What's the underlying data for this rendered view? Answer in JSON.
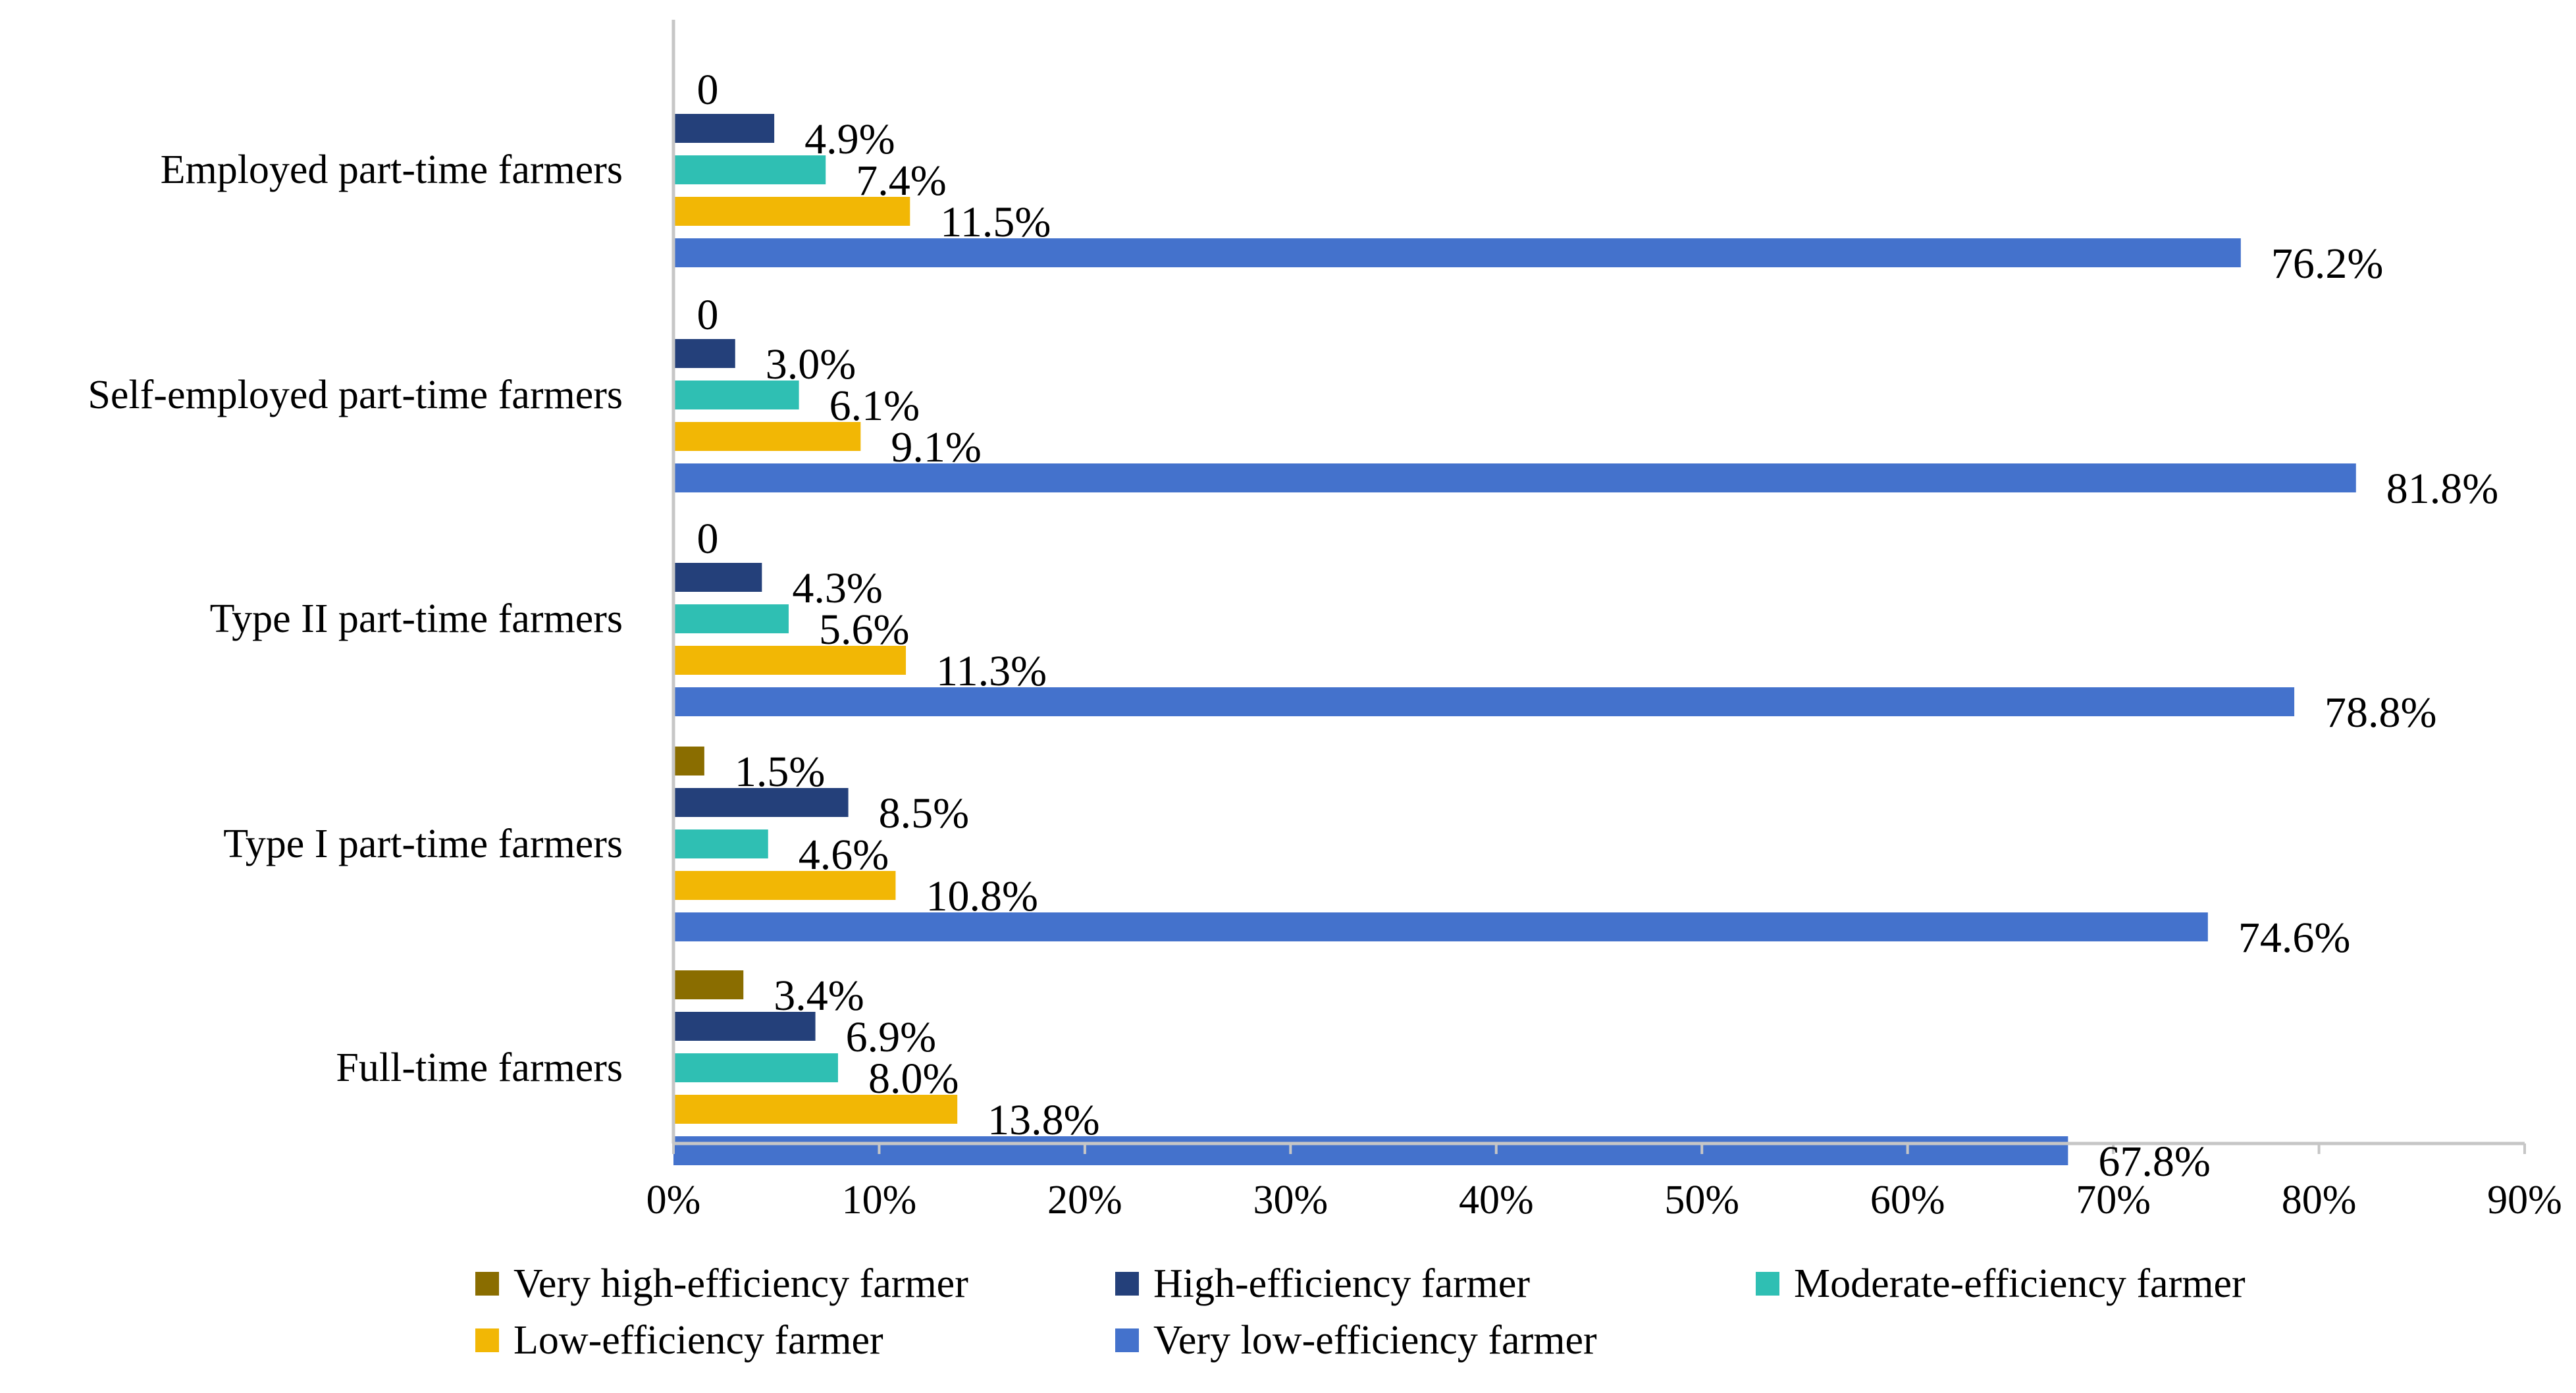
{
  "chart_data": {
    "type": "bar",
    "orientation": "horizontal",
    "categories": [
      "Employed part-time farmers",
      "Self-employed part-time farmers",
      "Type II part-time farmers",
      "Type I part-time farmers",
      "Full-time farmers"
    ],
    "series": [
      {
        "name": "Very high-efficiency farmer",
        "color": "#8a6d00",
        "values": [
          0,
          0,
          0,
          1.5,
          3.4
        ],
        "labels": [
          "0",
          "0",
          "0",
          "1.5%",
          "3.4%"
        ]
      },
      {
        "name": "High-efficiency farmer",
        "color": "#24407a",
        "values": [
          4.9,
          3.0,
          4.3,
          8.5,
          6.9
        ],
        "labels": [
          "4.9%",
          "3.0%",
          "4.3%",
          "8.5%",
          "6.9%"
        ]
      },
      {
        "name": "Moderate-efficiency farmer",
        "color": "#2fbfb3",
        "values": [
          7.4,
          6.1,
          5.6,
          4.6,
          8.0
        ],
        "labels": [
          "7.4%",
          "6.1%",
          "5.6%",
          "4.6%",
          "8.0%"
        ]
      },
      {
        "name": "Low-efficiency farmer",
        "color": "#f2b705",
        "values": [
          11.5,
          9.1,
          11.3,
          10.8,
          13.8
        ],
        "labels": [
          "11.5%",
          "9.1%",
          "11.3%",
          "10.8%",
          "13.8%"
        ]
      },
      {
        "name": "Very low-efficiency farmer",
        "color": "#4472cc",
        "values": [
          76.2,
          81.8,
          78.8,
          74.6,
          67.8
        ],
        "labels": [
          "76.2%",
          "81.8%",
          "78.8%",
          "74.6%",
          "67.8%"
        ]
      }
    ],
    "xlim": [
      0,
      90
    ],
    "xticks": [
      "0%",
      "10%",
      "20%",
      "30%",
      "40%",
      "50%",
      "60%",
      "70%",
      "80%",
      "90%"
    ],
    "title": "",
    "xlabel": "",
    "ylabel": "",
    "grid": false,
    "legend_position": "bottom"
  }
}
